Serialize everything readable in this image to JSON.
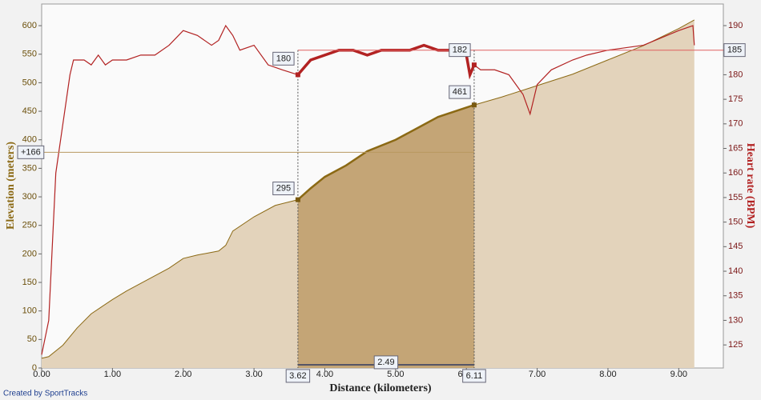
{
  "chart_data": {
    "type": "area-line",
    "x_label": "Distance (kilometers)",
    "y_label": "Elevation (meters)",
    "y2_label": "Heart rate (BPM)",
    "footer": "Created by SportTracks",
    "xlim": [
      0,
      9.63
    ],
    "xticks": [
      {
        "value": 0,
        "label": "0.00"
      },
      {
        "value": 1,
        "label": "1.00"
      },
      {
        "value": 2,
        "label": "2.00"
      },
      {
        "value": 3,
        "label": "3.00"
      },
      {
        "value": 4,
        "label": "4.00"
      },
      {
        "value": 5,
        "label": "5.00"
      },
      {
        "value": 6,
        "label": "6.00"
      },
      {
        "value": 7,
        "label": "7.00"
      },
      {
        "value": 8,
        "label": "8.00"
      },
      {
        "value": 9,
        "label": "9.00"
      }
    ],
    "ylim": [
      0,
      638
    ],
    "yticks": [
      0,
      50,
      100,
      150,
      200,
      250,
      300,
      350,
      400,
      450,
      500,
      550,
      600
    ],
    "y2lim": [
      120.3,
      194.4
    ],
    "y2ticks": [
      125,
      130,
      135,
      140,
      145,
      150,
      155,
      160,
      165,
      170,
      175,
      180,
      185,
      190
    ],
    "series": [
      {
        "color": "#8b6914",
        "fill": "#e3d3bb",
        "x": [
          0,
          0.1,
          0.3,
          0.5,
          0.7,
          1.0,
          1.2,
          1.5,
          1.8,
          2.0,
          2.2,
          2.5,
          2.6,
          2.7,
          3.0,
          3.3,
          3.62,
          3.8,
          4.0,
          4.3,
          4.6,
          5.0,
          5.3,
          5.6,
          6.11,
          6.5,
          7.0,
          7.5,
          8.0,
          8.5,
          9.0,
          9.22
        ],
        "values": [
          17,
          20,
          40,
          70,
          95,
          120,
          135,
          155,
          175,
          192,
          198,
          205,
          215,
          240,
          265,
          285,
          295,
          315,
          335,
          355,
          380,
          400,
          420,
          440,
          461,
          475,
          495,
          515,
          540,
          565,
          595,
          610
        ]
      },
      {
        "color": "#b22222",
        "axis": "y2",
        "x": [
          0,
          0.1,
          0.2,
          0.3,
          0.4,
          0.45,
          0.6,
          0.7,
          0.8,
          0.9,
          1.0,
          1.2,
          1.4,
          1.6,
          1.8,
          2.0,
          2.2,
          2.4,
          2.5,
          2.6,
          2.7,
          2.8,
          3.0,
          3.2,
          3.4,
          3.62,
          3.8,
          4.0,
          4.2,
          4.4,
          4.6,
          4.8,
          5.0,
          5.2,
          5.4,
          5.6,
          5.8,
          6.0,
          6.05,
          6.11,
          6.2,
          6.4,
          6.6,
          6.8,
          6.9,
          7.0,
          7.2,
          7.5,
          7.7,
          8.0,
          8.5,
          9.0,
          9.2,
          9.22
        ],
        "values": [
          123,
          130,
          160,
          170,
          180,
          183,
          183,
          182,
          184,
          182,
          183,
          183,
          184,
          184,
          186,
          189,
          188,
          186,
          187,
          190,
          188,
          185,
          186,
          182,
          181,
          180,
          183,
          184,
          185,
          185,
          184,
          185,
          185,
          185,
          186,
          185,
          185,
          184,
          180,
          182,
          181,
          181,
          180,
          176,
          172,
          178,
          181,
          183,
          184,
          185,
          186,
          189,
          190,
          186
        ]
      }
    ],
    "selection": {
      "start": {
        "value": 3.62,
        "label": "3.62"
      },
      "end": {
        "value": 6.11,
        "label": "6.11"
      },
      "width": 2.49,
      "start_hr": 180,
      "end_hr": 182,
      "start_elev": 295,
      "end_elev": 461,
      "elev_gain": {
        "value": 166,
        "label": "+166"
      },
      "hr_marker": 185,
      "fill": "#c4a576"
    }
  }
}
